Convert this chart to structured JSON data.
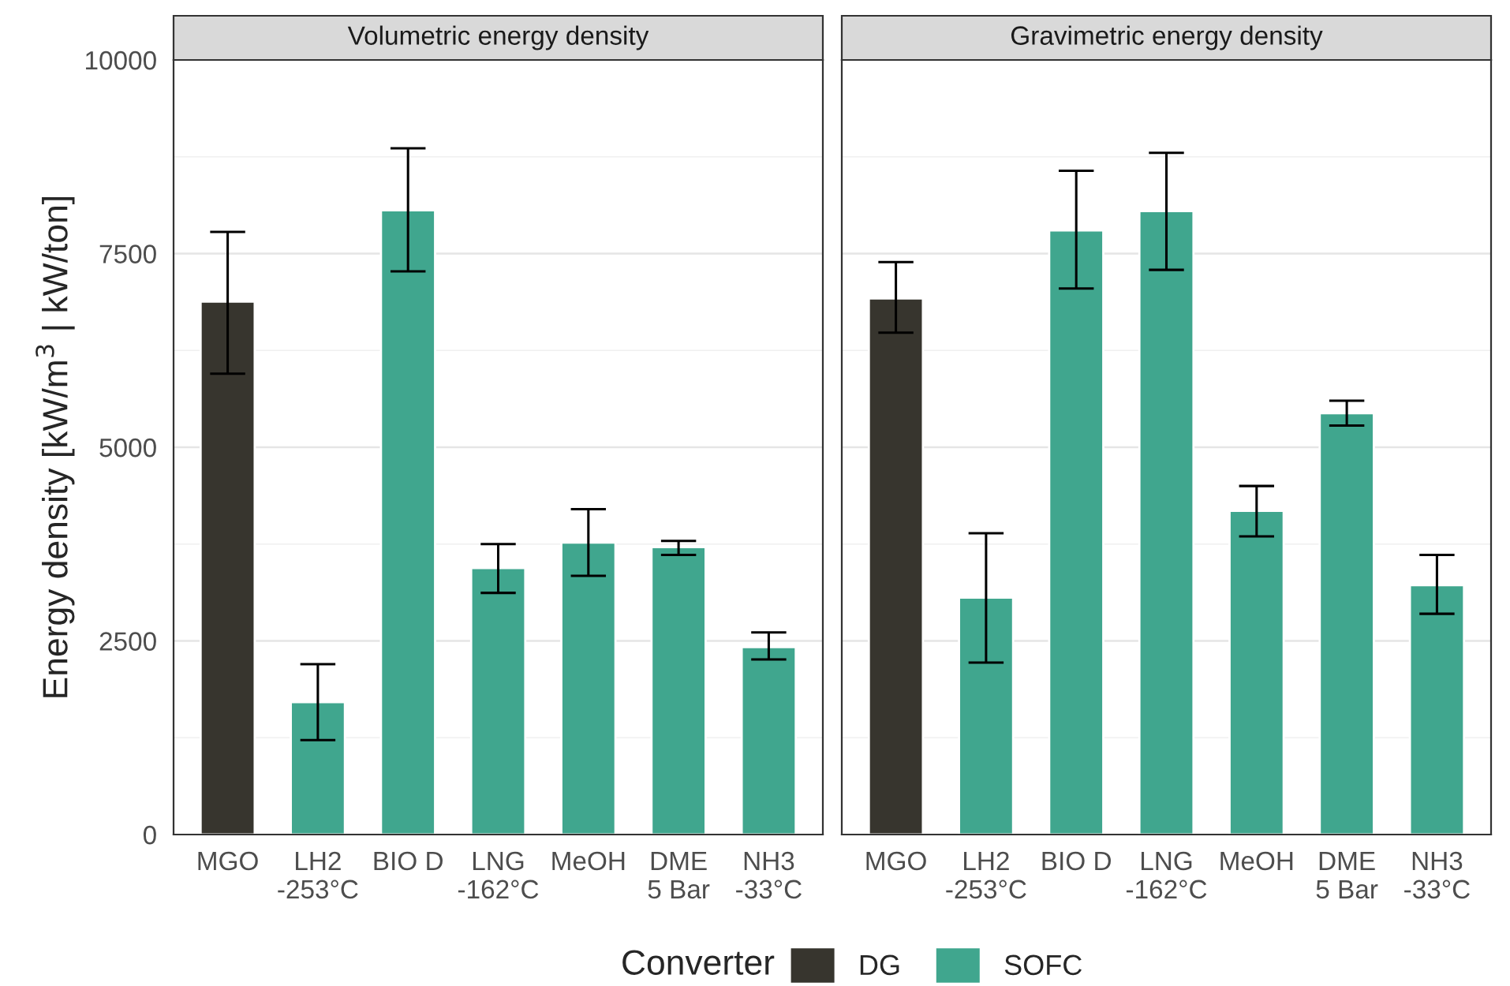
{
  "chart_data": [
    {
      "type": "bar",
      "title": "Volumetric energy density",
      "ylabel": "Energy density [kW/m$^{3}$ | kW/ton]",
      "categories": [
        "MGO",
        "LH2\n-253°C",
        "BIO D",
        "LNG\n-162°C",
        "MeOH",
        "DME\n5 Bar",
        "NH3\n-33°C"
      ],
      "stacked": true,
      "series": [
        {
          "name": "DG",
          "color": "#37352e",
          "values": [
            6880,
            null,
            null,
            null,
            null,
            null,
            null
          ],
          "errors": [
            [
              5950,
              7780
            ],
            null,
            null,
            null,
            null,
            null,
            null
          ]
        },
        {
          "name": "SOFC",
          "color": "#40a68e",
          "values": [
            null,
            1710,
            8060,
            3440,
            3770,
            3710,
            2420
          ],
          "errors": [
            null,
            [
              1220,
              2200
            ],
            [
              7270,
              8860
            ],
            [
              3120,
              3750
            ],
            [
              3340,
              4200
            ],
            [
              3610,
              3790
            ],
            [
              2260,
              2610
            ]
          ]
        }
      ],
      "ylim": [
        0,
        10000
      ],
      "yticks": [
        0,
        2500,
        5000,
        7500,
        10000
      ],
      "grid": "y",
      "legend": "bottom",
      "legend_title": "Converter"
    },
    {
      "type": "bar",
      "title": "Gravimetric energy density",
      "categories": [
        "MGO",
        "LH2\n-253°C",
        "BIO D",
        "LNG\n-162°C",
        "MeOH",
        "DME\n5 Bar",
        "NH3\n-33°C"
      ],
      "stacked": true,
      "series": [
        {
          "name": "DG",
          "color": "#37352e",
          "values": [
            6920,
            null,
            null,
            null,
            null,
            null,
            null
          ],
          "errors": [
            [
              6480,
              7390
            ],
            null,
            null,
            null,
            null,
            null,
            null
          ]
        },
        {
          "name": "SOFC",
          "color": "#40a68e",
          "values": [
            null,
            3060,
            7800,
            8050,
            4180,
            5440,
            3220
          ],
          "errors": [
            null,
            [
              2220,
              3890
            ],
            [
              7050,
              8570
            ],
            [
              7290,
              8800
            ],
            [
              3850,
              4500
            ],
            [
              5280,
              5600
            ],
            [
              2850,
              3610
            ]
          ]
        }
      ],
      "ylim": [
        0,
        10000
      ],
      "yticks": [
        0,
        2500,
        5000,
        7500,
        10000
      ],
      "tick_labels": "x",
      "grid": "y",
      "legend": "bottom"
    }
  ]
}
